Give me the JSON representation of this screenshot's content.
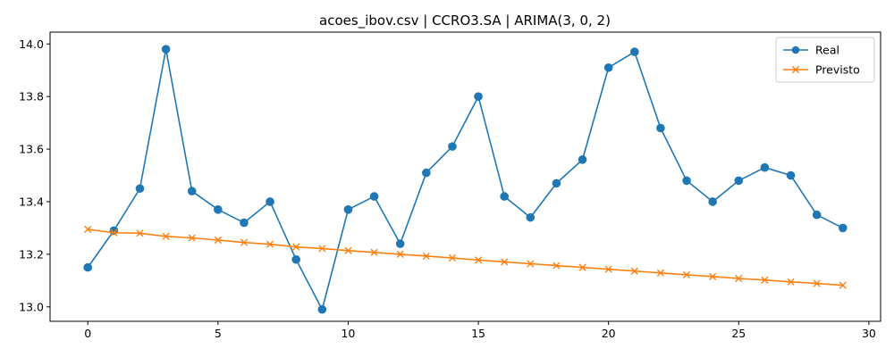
{
  "chart_data": {
    "type": "line",
    "title": "acoes_ibov.csv | CCRO3.SA | ARIMA(3, 0, 2)",
    "xlabel": "",
    "ylabel": "",
    "xlim": [
      -1.45,
      30.45
    ],
    "ylim": [
      12.945,
      14.045
    ],
    "x_ticks": [
      0,
      5,
      10,
      15,
      20,
      25,
      30
    ],
    "y_ticks": [
      13.0,
      13.2,
      13.4,
      13.6,
      13.8,
      14.0
    ],
    "x_tick_labels": [
      "0",
      "5",
      "10",
      "15",
      "20",
      "25",
      "30"
    ],
    "y_tick_labels": [
      "13.0",
      "13.2",
      "13.4",
      "13.6",
      "13.8",
      "14.0"
    ],
    "grid": false,
    "legend_position": "top-right",
    "x": [
      0,
      1,
      2,
      3,
      4,
      5,
      6,
      7,
      8,
      9,
      10,
      11,
      12,
      13,
      14,
      15,
      16,
      17,
      18,
      19,
      20,
      21,
      22,
      23,
      24,
      25,
      26,
      27,
      28,
      29
    ],
    "series": [
      {
        "name": "Real",
        "color": "#1f77b4",
        "marker": "circle",
        "values": [
          13.15,
          13.29,
          13.45,
          13.98,
          13.44,
          13.37,
          13.32,
          13.4,
          13.18,
          12.99,
          13.37,
          13.42,
          13.24,
          13.51,
          13.61,
          13.8,
          13.42,
          13.34,
          13.47,
          13.56,
          13.91,
          13.97,
          13.68,
          13.48,
          13.4,
          13.48,
          13.53,
          13.5,
          13.35,
          13.3
        ]
      },
      {
        "name": "Previsto",
        "color": "#ff7f0e",
        "marker": "x",
        "values": [
          13.295,
          13.282,
          13.28,
          13.268,
          13.262,
          13.254,
          13.245,
          13.238,
          13.228,
          13.222,
          13.214,
          13.207,
          13.2,
          13.193,
          13.186,
          13.178,
          13.171,
          13.164,
          13.157,
          13.15,
          13.143,
          13.136,
          13.129,
          13.122,
          13.115,
          13.108,
          13.102,
          13.095,
          13.089,
          13.082
        ]
      }
    ]
  }
}
